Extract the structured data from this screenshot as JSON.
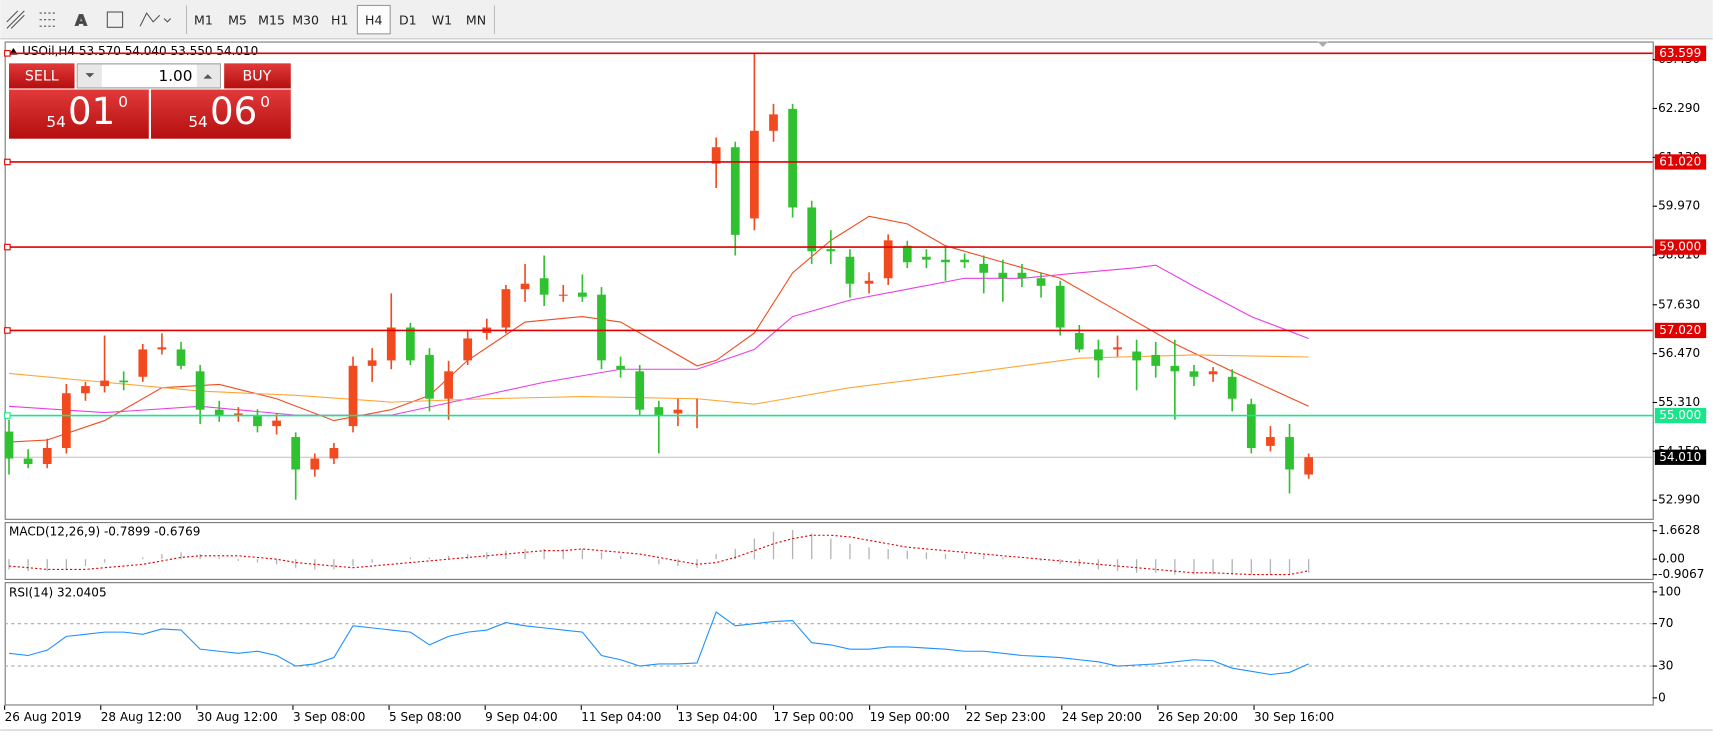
{
  "toolbar": {
    "timeframes": [
      "M1",
      "M5",
      "M15",
      "M30",
      "H1",
      "H4",
      "D1",
      "W1",
      "MN"
    ],
    "active": "H4"
  },
  "trade_panel": {
    "sell": "SELL",
    "buy": "BUY",
    "lots": "1.00",
    "sell_price": {
      "big": "54",
      "small": "01",
      "sup": "0"
    },
    "buy_price": {
      "big": "54",
      "small": "06",
      "sup": "0"
    }
  },
  "chart_data": [
    {
      "type": "candlestick",
      "title": "USOil,H4  53.570 54.040 53.550 54.010",
      "ylim": [
        52.55,
        63.88
      ],
      "yticks": [
        {
          "value": 52.99,
          "label": "52.990"
        },
        {
          "value": 54.15,
          "label": "54.150"
        },
        {
          "value": 55.31,
          "label": "55.310"
        },
        {
          "value": 56.47,
          "label": "56.470"
        },
        {
          "value": 57.63,
          "label": "57.630"
        },
        {
          "value": 58.81,
          "label": "58.810"
        },
        {
          "value": 59.97,
          "label": "59.970"
        },
        {
          "value": 61.13,
          "label": "61.130"
        },
        {
          "value": 62.29,
          "label": "62.290"
        },
        {
          "value": 63.45,
          "label": "63.450"
        }
      ],
      "x_labels": [
        "26 Aug 2019",
        "28 Aug 12:00",
        "30 Aug 12:00",
        "3 Sep 08:00",
        "5 Sep 08:00",
        "9 Sep 04:00",
        "11 Sep 04:00",
        "13 Sep 04:00",
        "17 Sep 00:00",
        "19 Sep 00:00",
        "22 Sep 23:00",
        "24 Sep 20:00",
        "26 Sep 20:00",
        "30 Sep 16:00"
      ],
      "up_color": "#f04a1e",
      "down_color": "#2fc12f",
      "levels": [
        {
          "value": 63.599,
          "label": "63.599",
          "color": "#e00000"
        },
        {
          "value": 61.02,
          "label": "61.020",
          "color": "#e00000"
        },
        {
          "value": 59.0,
          "label": "59.000",
          "color": "#e00000"
        },
        {
          "value": 57.02,
          "label": "57.020",
          "color": "#e00000"
        },
        {
          "value": 55.0,
          "label": "55.000",
          "color": "#19e68c"
        }
      ],
      "bid": {
        "value": 54.01,
        "label": "54.010"
      },
      "candles": [
        [
          54.62,
          54.9,
          53.6,
          53.98
        ],
        [
          53.98,
          54.2,
          53.75,
          53.85
        ],
        [
          53.85,
          54.45,
          53.75,
          54.23
        ],
        [
          54.23,
          55.75,
          54.1,
          55.53
        ],
        [
          55.53,
          55.8,
          55.35,
          55.7
        ],
        [
          55.7,
          56.9,
          55.55,
          55.83
        ],
        [
          55.83,
          56.05,
          55.6,
          55.79
        ],
        [
          55.92,
          56.7,
          55.8,
          56.57
        ],
        [
          56.57,
          56.95,
          56.45,
          56.62
        ],
        [
          56.57,
          56.75,
          56.1,
          56.18
        ],
        [
          56.05,
          56.2,
          54.8,
          55.14
        ],
        [
          55.14,
          55.35,
          54.85,
          55.01
        ],
        [
          55.01,
          55.2,
          54.85,
          55.05
        ],
        [
          55.01,
          55.15,
          54.6,
          54.75
        ],
        [
          54.75,
          55.05,
          54.55,
          54.88
        ],
        [
          54.49,
          54.6,
          53.0,
          53.72
        ],
        [
          53.72,
          54.1,
          53.55,
          53.98
        ],
        [
          53.98,
          54.35,
          53.85,
          54.23
        ],
        [
          54.75,
          56.4,
          54.6,
          56.18
        ],
        [
          56.18,
          56.6,
          55.8,
          56.31
        ],
        [
          56.31,
          57.9,
          56.1,
          57.09
        ],
        [
          57.09,
          57.2,
          56.2,
          56.31
        ],
        [
          56.44,
          56.6,
          55.1,
          55.4
        ],
        [
          55.4,
          56.3,
          54.9,
          56.05
        ],
        [
          56.31,
          57.0,
          56.2,
          56.83
        ],
        [
          56.96,
          57.3,
          56.8,
          57.09
        ],
        [
          57.09,
          58.1,
          56.95,
          58.0
        ],
        [
          58.0,
          58.6,
          57.7,
          58.13
        ],
        [
          58.26,
          58.8,
          57.6,
          57.87
        ],
        [
          57.87,
          58.1,
          57.7,
          57.87
        ],
        [
          57.92,
          58.35,
          57.7,
          57.82
        ],
        [
          57.87,
          58.05,
          56.1,
          56.31
        ],
        [
          56.18,
          56.4,
          55.9,
          56.1
        ],
        [
          56.05,
          56.2,
          55.0,
          55.14
        ],
        [
          55.2,
          55.35,
          54.1,
          55.01
        ],
        [
          55.05,
          55.4,
          54.75,
          55.14
        ],
        [
          55.01,
          55.4,
          54.7,
          55.01
        ],
        [
          60.98,
          61.6,
          60.4,
          61.37
        ],
        [
          61.37,
          61.5,
          58.8,
          59.29
        ],
        [
          59.68,
          63.6,
          59.4,
          61.76
        ],
        [
          61.76,
          62.4,
          61.5,
          62.15
        ],
        [
          62.28,
          62.4,
          59.7,
          59.94
        ],
        [
          59.94,
          60.1,
          58.6,
          58.9
        ],
        [
          58.95,
          59.4,
          58.6,
          58.9
        ],
        [
          58.77,
          58.95,
          57.8,
          58.13
        ],
        [
          58.13,
          58.4,
          57.9,
          58.2
        ],
        [
          58.26,
          59.3,
          58.1,
          59.16
        ],
        [
          59.03,
          59.15,
          58.5,
          58.64
        ],
        [
          58.77,
          58.95,
          58.5,
          58.7
        ],
        [
          58.7,
          59.0,
          58.2,
          58.64
        ],
        [
          58.7,
          58.85,
          58.5,
          58.64
        ],
        [
          58.6,
          58.8,
          57.9,
          58.39
        ],
        [
          58.39,
          58.7,
          57.7,
          58.26
        ],
        [
          58.39,
          58.6,
          58.05,
          58.26
        ],
        [
          58.26,
          58.4,
          57.8,
          58.08
        ],
        [
          58.08,
          58.2,
          56.9,
          57.09
        ],
        [
          56.96,
          57.15,
          56.5,
          56.57
        ],
        [
          56.57,
          56.8,
          55.9,
          56.31
        ],
        [
          56.57,
          56.9,
          56.4,
          56.62
        ],
        [
          56.52,
          56.8,
          55.6,
          56.31
        ],
        [
          56.44,
          56.75,
          55.9,
          56.18
        ],
        [
          56.18,
          56.8,
          54.9,
          56.05
        ],
        [
          56.05,
          56.2,
          55.7,
          55.92
        ],
        [
          55.98,
          56.15,
          55.8,
          56.05
        ],
        [
          55.92,
          56.1,
          55.1,
          55.4
        ],
        [
          55.27,
          55.4,
          54.1,
          54.23
        ],
        [
          54.28,
          54.75,
          54.15,
          54.49
        ],
        [
          54.49,
          54.8,
          53.15,
          53.72
        ],
        [
          53.6,
          54.1,
          53.5,
          54.01
        ]
      ],
      "series": [
        {
          "color": "#f04a1e",
          "x": [
            0,
            2,
            5,
            8,
            11,
            14,
            17,
            20,
            22,
            24,
            27,
            30,
            32,
            34,
            36,
            37,
            39,
            41,
            43,
            45,
            47,
            49,
            52,
            55,
            58,
            61,
            64,
            68
          ],
          "values": [
            54.37,
            54.42,
            54.88,
            55.66,
            55.74,
            55.4,
            54.88,
            55.14,
            55.48,
            56.31,
            57.22,
            57.35,
            57.22,
            56.7,
            56.18,
            56.31,
            56.96,
            58.39,
            59.16,
            59.73,
            59.55,
            59.03,
            58.64,
            58.26,
            57.48,
            56.7,
            56.05,
            55.22
          ]
        },
        {
          "color": "#e83ee8",
          "x": [
            0,
            5,
            10,
            15,
            20,
            24,
            28,
            32,
            36,
            39,
            41,
            44,
            47,
            50,
            53,
            56,
            59,
            60,
            62,
            65,
            68
          ],
          "values": [
            55.22,
            55.07,
            55.22,
            55.01,
            55.01,
            55.4,
            55.79,
            56.1,
            56.1,
            56.57,
            57.35,
            57.74,
            58.0,
            58.26,
            58.26,
            58.39,
            58.51,
            58.57,
            58.07,
            57.35,
            56.83
          ]
        },
        {
          "color": "#ffa534",
          "x": [
            0,
            5,
            10,
            15,
            20,
            25,
            30,
            36,
            39,
            44,
            50,
            56,
            62,
            68
          ],
          "values": [
            56.0,
            55.79,
            55.58,
            55.48,
            55.32,
            55.4,
            55.45,
            55.4,
            55.27,
            55.66,
            56.0,
            56.36,
            56.44,
            56.39
          ]
        }
      ]
    },
    {
      "type": "macd",
      "title": "MACD(12,26,9) -0.7899 -0.6769",
      "ylim": [
        -1.15,
        2.17
      ],
      "yticks": [
        1.6628,
        {
          "value": 0,
          "label": "0.00"
        },
        -0.9067
      ],
      "histogram_color": "#b4b4b4",
      "signal_color": "#e00000",
      "histogram": [
        -0.6,
        -0.7,
        -0.7,
        -0.6,
        -0.4,
        -0.2,
        0.0,
        0.1,
        0.3,
        0.4,
        0.3,
        0.1,
        -0.1,
        -0.2,
        -0.3,
        -0.5,
        -0.6,
        -0.6,
        -0.4,
        -0.2,
        0.0,
        0.1,
        0.1,
        0.2,
        0.3,
        0.4,
        0.5,
        0.6,
        0.6,
        0.6,
        0.6,
        0.4,
        0.2,
        0.0,
        -0.3,
        -0.4,
        -0.5,
        0.3,
        0.6,
        1.2,
        1.6,
        1.7,
        1.5,
        1.2,
        0.9,
        0.7,
        0.6,
        0.5,
        0.4,
        0.3,
        0.3,
        0.2,
        0.1,
        0.0,
        -0.1,
        -0.3,
        -0.4,
        -0.6,
        -0.7,
        -0.8,
        -0.8,
        -0.9,
        -0.9,
        -0.9,
        -0.9,
        -0.9,
        -0.9,
        -0.9,
        -0.7899
      ],
      "signal": [
        -0.4,
        -0.5,
        -0.6,
        -0.6,
        -0.6,
        -0.5,
        -0.4,
        -0.3,
        -0.1,
        0.1,
        0.2,
        0.2,
        0.2,
        0.1,
        0.0,
        -0.2,
        -0.3,
        -0.4,
        -0.5,
        -0.4,
        -0.3,
        -0.2,
        -0.1,
        0.0,
        0.1,
        0.2,
        0.3,
        0.4,
        0.5,
        0.5,
        0.6,
        0.5,
        0.4,
        0.3,
        0.1,
        -0.1,
        -0.3,
        -0.2,
        0.1,
        0.5,
        0.9,
        1.2,
        1.4,
        1.4,
        1.3,
        1.1,
        0.9,
        0.7,
        0.6,
        0.5,
        0.4,
        0.3,
        0.2,
        0.1,
        0.0,
        -0.1,
        -0.2,
        -0.3,
        -0.4,
        -0.5,
        -0.6,
        -0.7,
        -0.8,
        -0.8,
        -0.85,
        -0.9,
        -0.9,
        -0.9,
        -0.6769
      ]
    },
    {
      "type": "rsi",
      "title": "RSI(14) 32.0405",
      "ylim": [
        -6.2,
        108.2
      ],
      "yticks": [
        100,
        70,
        30,
        0
      ],
      "levels": [
        70,
        30
      ],
      "color": "#1e90ff",
      "values": [
        42,
        40,
        45,
        58,
        60,
        62,
        62,
        60,
        65,
        64,
        46,
        44,
        42,
        44,
        40,
        30,
        32,
        38,
        68,
        66,
        64,
        62,
        50,
        58,
        62,
        64,
        71,
        68,
        66,
        64,
        62,
        40,
        36,
        30,
        32,
        32,
        33,
        81,
        68,
        70,
        72,
        73,
        52,
        50,
        46,
        46,
        48,
        48,
        47,
        46,
        44,
        44,
        42,
        40,
        39,
        38,
        36,
        34,
        30,
        31,
        32,
        34,
        36,
        35,
        28,
        25,
        22,
        24,
        32.0405
      ]
    }
  ]
}
